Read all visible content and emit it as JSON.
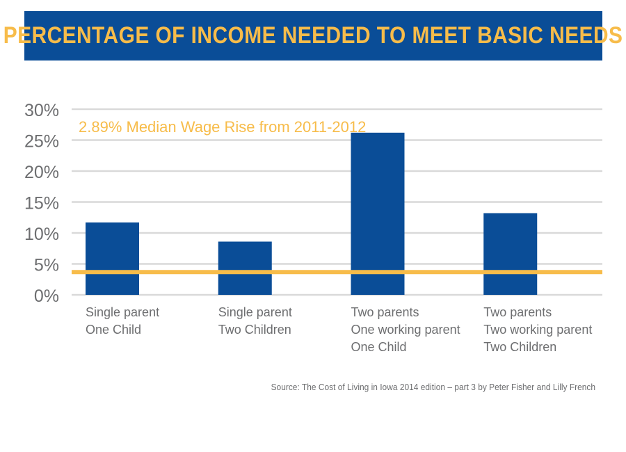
{
  "header": {
    "title": "PERCENTAGE OF INCOME NEEDED TO MEET BASIC NEEDS"
  },
  "colors": {
    "banner": "#0a4d97",
    "title_text": "#f7bc4a",
    "bar": "#0a4d97",
    "reference_line": "#f7bc4a",
    "grid": "#d9d9d9",
    "axis_text": "#6d6e70"
  },
  "chart_data": {
    "type": "bar",
    "categories": [
      [
        "Single parent",
        "One Child"
      ],
      [
        "Single parent",
        "Two Children"
      ],
      [
        "Two parents",
        "One working parent",
        "One Child"
      ],
      [
        "Two parents",
        "Two working parent",
        "Two Children"
      ]
    ],
    "values": [
      11.7,
      8.6,
      26.2,
      13.2
    ],
    "ylim": [
      0,
      30
    ],
    "yticks": [
      0,
      5,
      10,
      15,
      20,
      25,
      30
    ],
    "ytick_labels": [
      "0%",
      "5%",
      "10%",
      "15%",
      "20%",
      "25%",
      "30%"
    ],
    "grid": true,
    "reference_line": {
      "value": 2.89,
      "label": "2.89% Median Wage Rise from 2011-2012"
    }
  },
  "footer": {
    "source": "Source: The Cost of Living in Iowa 2014 edition – part 3 by Peter Fisher and Lilly French"
  }
}
